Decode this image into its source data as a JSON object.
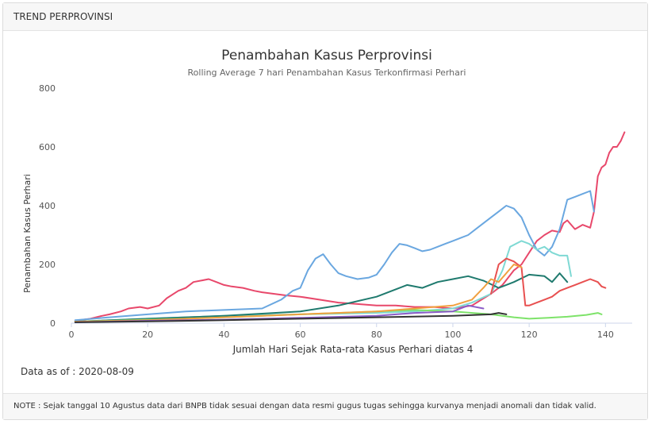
{
  "panel": {
    "header_title": "TREND PERPROVINSI",
    "data_as_of_label": "Data as of :",
    "data_as_of_value": "2020-08-09",
    "note": "NOTE : Sejak tanggal 10 Agustus data dari BNPB tidak sesuai dengan data resmi gugus tugas sehingga kurvanya menjadi anomali dan tidak valid."
  },
  "chart_data": {
    "type": "line",
    "title": "Penambahan Kasus Perprovinsi",
    "subtitle": "Rolling Average 7 hari Penambahan Kasus Terkonfirmasi Perhari",
    "xlabel": "Jumlah Hari Sejak Rata-rata Kasus Perhari diatas 4",
    "ylabel": "Penambahan Kasus Perhari",
    "xlim": [
      0,
      147
    ],
    "ylim": [
      0,
      800
    ],
    "xticks": [
      0,
      20,
      40,
      60,
      80,
      100,
      120,
      140
    ],
    "yticks": [
      0,
      200,
      400,
      600,
      800
    ],
    "grid": false,
    "series": [
      {
        "color": "#e8486b",
        "x": [
          1,
          5,
          8,
          10,
          13,
          15,
          18,
          20,
          23,
          25,
          28,
          30,
          32,
          34,
          36,
          38,
          40,
          42,
          45,
          48,
          50,
          53,
          56,
          60,
          65,
          70,
          75,
          80,
          85,
          90,
          95,
          100,
          105,
          110,
          113,
          116,
          118,
          120,
          122,
          124,
          126,
          128,
          129,
          130,
          132,
          134,
          135,
          136,
          137,
          138,
          139,
          140,
          141,
          142,
          143,
          144,
          145
        ],
        "y": [
          8,
          15,
          25,
          30,
          40,
          50,
          55,
          50,
          60,
          85,
          110,
          120,
          140,
          145,
          150,
          140,
          130,
          125,
          120,
          110,
          105,
          100,
          95,
          90,
          80,
          70,
          65,
          60,
          60,
          55,
          55,
          50,
          60,
          100,
          130,
          180,
          200,
          240,
          280,
          300,
          315,
          310,
          340,
          350,
          320,
          335,
          330,
          325,
          380,
          500,
          530,
          540,
          580,
          600,
          600,
          620,
          650
        ]
      },
      {
        "color": "#6aa7e0",
        "x": [
          1,
          10,
          20,
          30,
          40,
          50,
          55,
          58,
          60,
          62,
          64,
          66,
          68,
          70,
          72,
          75,
          78,
          80,
          82,
          84,
          86,
          88,
          90,
          92,
          94,
          96,
          98,
          100,
          102,
          104,
          106,
          108,
          110,
          112,
          114,
          116,
          118,
          120,
          122,
          124,
          126,
          128,
          130,
          132,
          134,
          136,
          137
        ],
        "y": [
          10,
          20,
          30,
          40,
          45,
          50,
          80,
          110,
          120,
          180,
          220,
          235,
          200,
          170,
          160,
          150,
          155,
          165,
          200,
          240,
          270,
          265,
          255,
          245,
          250,
          260,
          270,
          280,
          290,
          300,
          320,
          340,
          360,
          380,
          400,
          390,
          360,
          300,
          250,
          230,
          260,
          320,
          420,
          430,
          440,
          450,
          380
        ]
      },
      {
        "color": "#7fd9d4",
        "x": [
          1,
          20,
          40,
          60,
          80,
          90,
          100,
          105,
          110,
          113,
          115,
          118,
          120,
          122,
          124,
          126,
          128,
          130,
          131
        ],
        "y": [
          5,
          15,
          25,
          30,
          35,
          40,
          50,
          70,
          100,
          180,
          260,
          280,
          270,
          250,
          260,
          240,
          230,
          230,
          160
        ]
      },
      {
        "color": "#1f7a6e",
        "x": [
          1,
          20,
          40,
          60,
          70,
          80,
          84,
          88,
          92,
          96,
          100,
          104,
          108,
          112,
          116,
          120,
          124,
          126,
          128,
          130
        ],
        "y": [
          5,
          15,
          25,
          40,
          60,
          90,
          110,
          130,
          120,
          140,
          150,
          160,
          145,
          120,
          140,
          165,
          160,
          140,
          170,
          140
        ]
      },
      {
        "color": "#e85050",
        "x": [
          110,
          112,
          114,
          116,
          118,
          119,
          120,
          122,
          124,
          126,
          128,
          130,
          132,
          134,
          136,
          138,
          139,
          140
        ],
        "y": [
          100,
          200,
          220,
          210,
          190,
          60,
          60,
          70,
          80,
          90,
          110,
          120,
          130,
          140,
          150,
          140,
          125,
          120
        ]
      },
      {
        "color": "#7ee36a",
        "x": [
          1,
          10,
          20,
          30,
          40,
          50,
          60,
          70,
          80,
          90,
          100,
          110,
          116,
          120,
          125,
          130,
          135,
          138,
          139
        ],
        "y": [
          5,
          8,
          12,
          15,
          20,
          25,
          30,
          35,
          40,
          45,
          40,
          30,
          20,
          15,
          18,
          22,
          28,
          35,
          30
        ]
      },
      {
        "color": "#f0a040",
        "x": [
          1,
          20,
          40,
          60,
          80,
          90,
          100,
          105,
          108,
          110,
          112,
          114,
          116,
          118
        ],
        "y": [
          5,
          10,
          20,
          30,
          40,
          50,
          60,
          80,
          120,
          150,
          140,
          170,
          200,
          190
        ]
      },
      {
        "color": "#8b5cc8",
        "x": [
          1,
          20,
          40,
          60,
          80,
          90,
          100,
          104,
          108
        ],
        "y": [
          3,
          8,
          12,
          18,
          25,
          35,
          40,
          60,
          50
        ]
      },
      {
        "color": "#333333",
        "x": [
          1,
          20,
          40,
          60,
          80,
          100,
          110,
          112,
          114
        ],
        "y": [
          3,
          6,
          10,
          15,
          20,
          25,
          30,
          35,
          30
        ]
      }
    ]
  }
}
